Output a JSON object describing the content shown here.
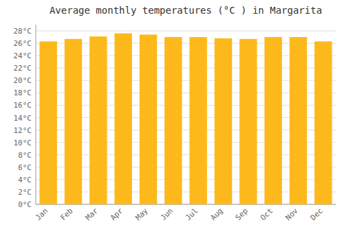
{
  "chart_data": {
    "type": "bar",
    "title": "Average monthly temperatures (°C ) in Margarita",
    "categories": [
      "Jan",
      "Feb",
      "Mar",
      "Apr",
      "May",
      "Jun",
      "Jul",
      "Aug",
      "Sep",
      "Oct",
      "Nov",
      "Dec"
    ],
    "values": [
      26.3,
      26.7,
      27.1,
      27.6,
      27.4,
      27.0,
      27.0,
      26.8,
      26.7,
      27.0,
      27.0,
      26.3
    ],
    "color": "#FDB91B",
    "ylim": [
      0,
      29
    ],
    "yticks": [
      {
        "value": 0,
        "label": "0°C"
      },
      {
        "value": 2,
        "label": "2°C"
      },
      {
        "value": 4,
        "label": "4°C"
      },
      {
        "value": 6,
        "label": "6°C"
      },
      {
        "value": 8,
        "label": "8°C"
      },
      {
        "value": 10,
        "label": "10°C"
      },
      {
        "value": 12,
        "label": "12°C"
      },
      {
        "value": 14,
        "label": "14°C"
      },
      {
        "value": 16,
        "label": "16°C"
      },
      {
        "value": 18,
        "label": "18°C"
      },
      {
        "value": 20,
        "label": "20°C"
      },
      {
        "value": 22,
        "label": "22°C"
      },
      {
        "value": 24,
        "label": "24°C"
      },
      {
        "value": 26,
        "label": "26°C"
      },
      {
        "value": 28,
        "label": "28°C"
      }
    ],
    "grid": true
  }
}
